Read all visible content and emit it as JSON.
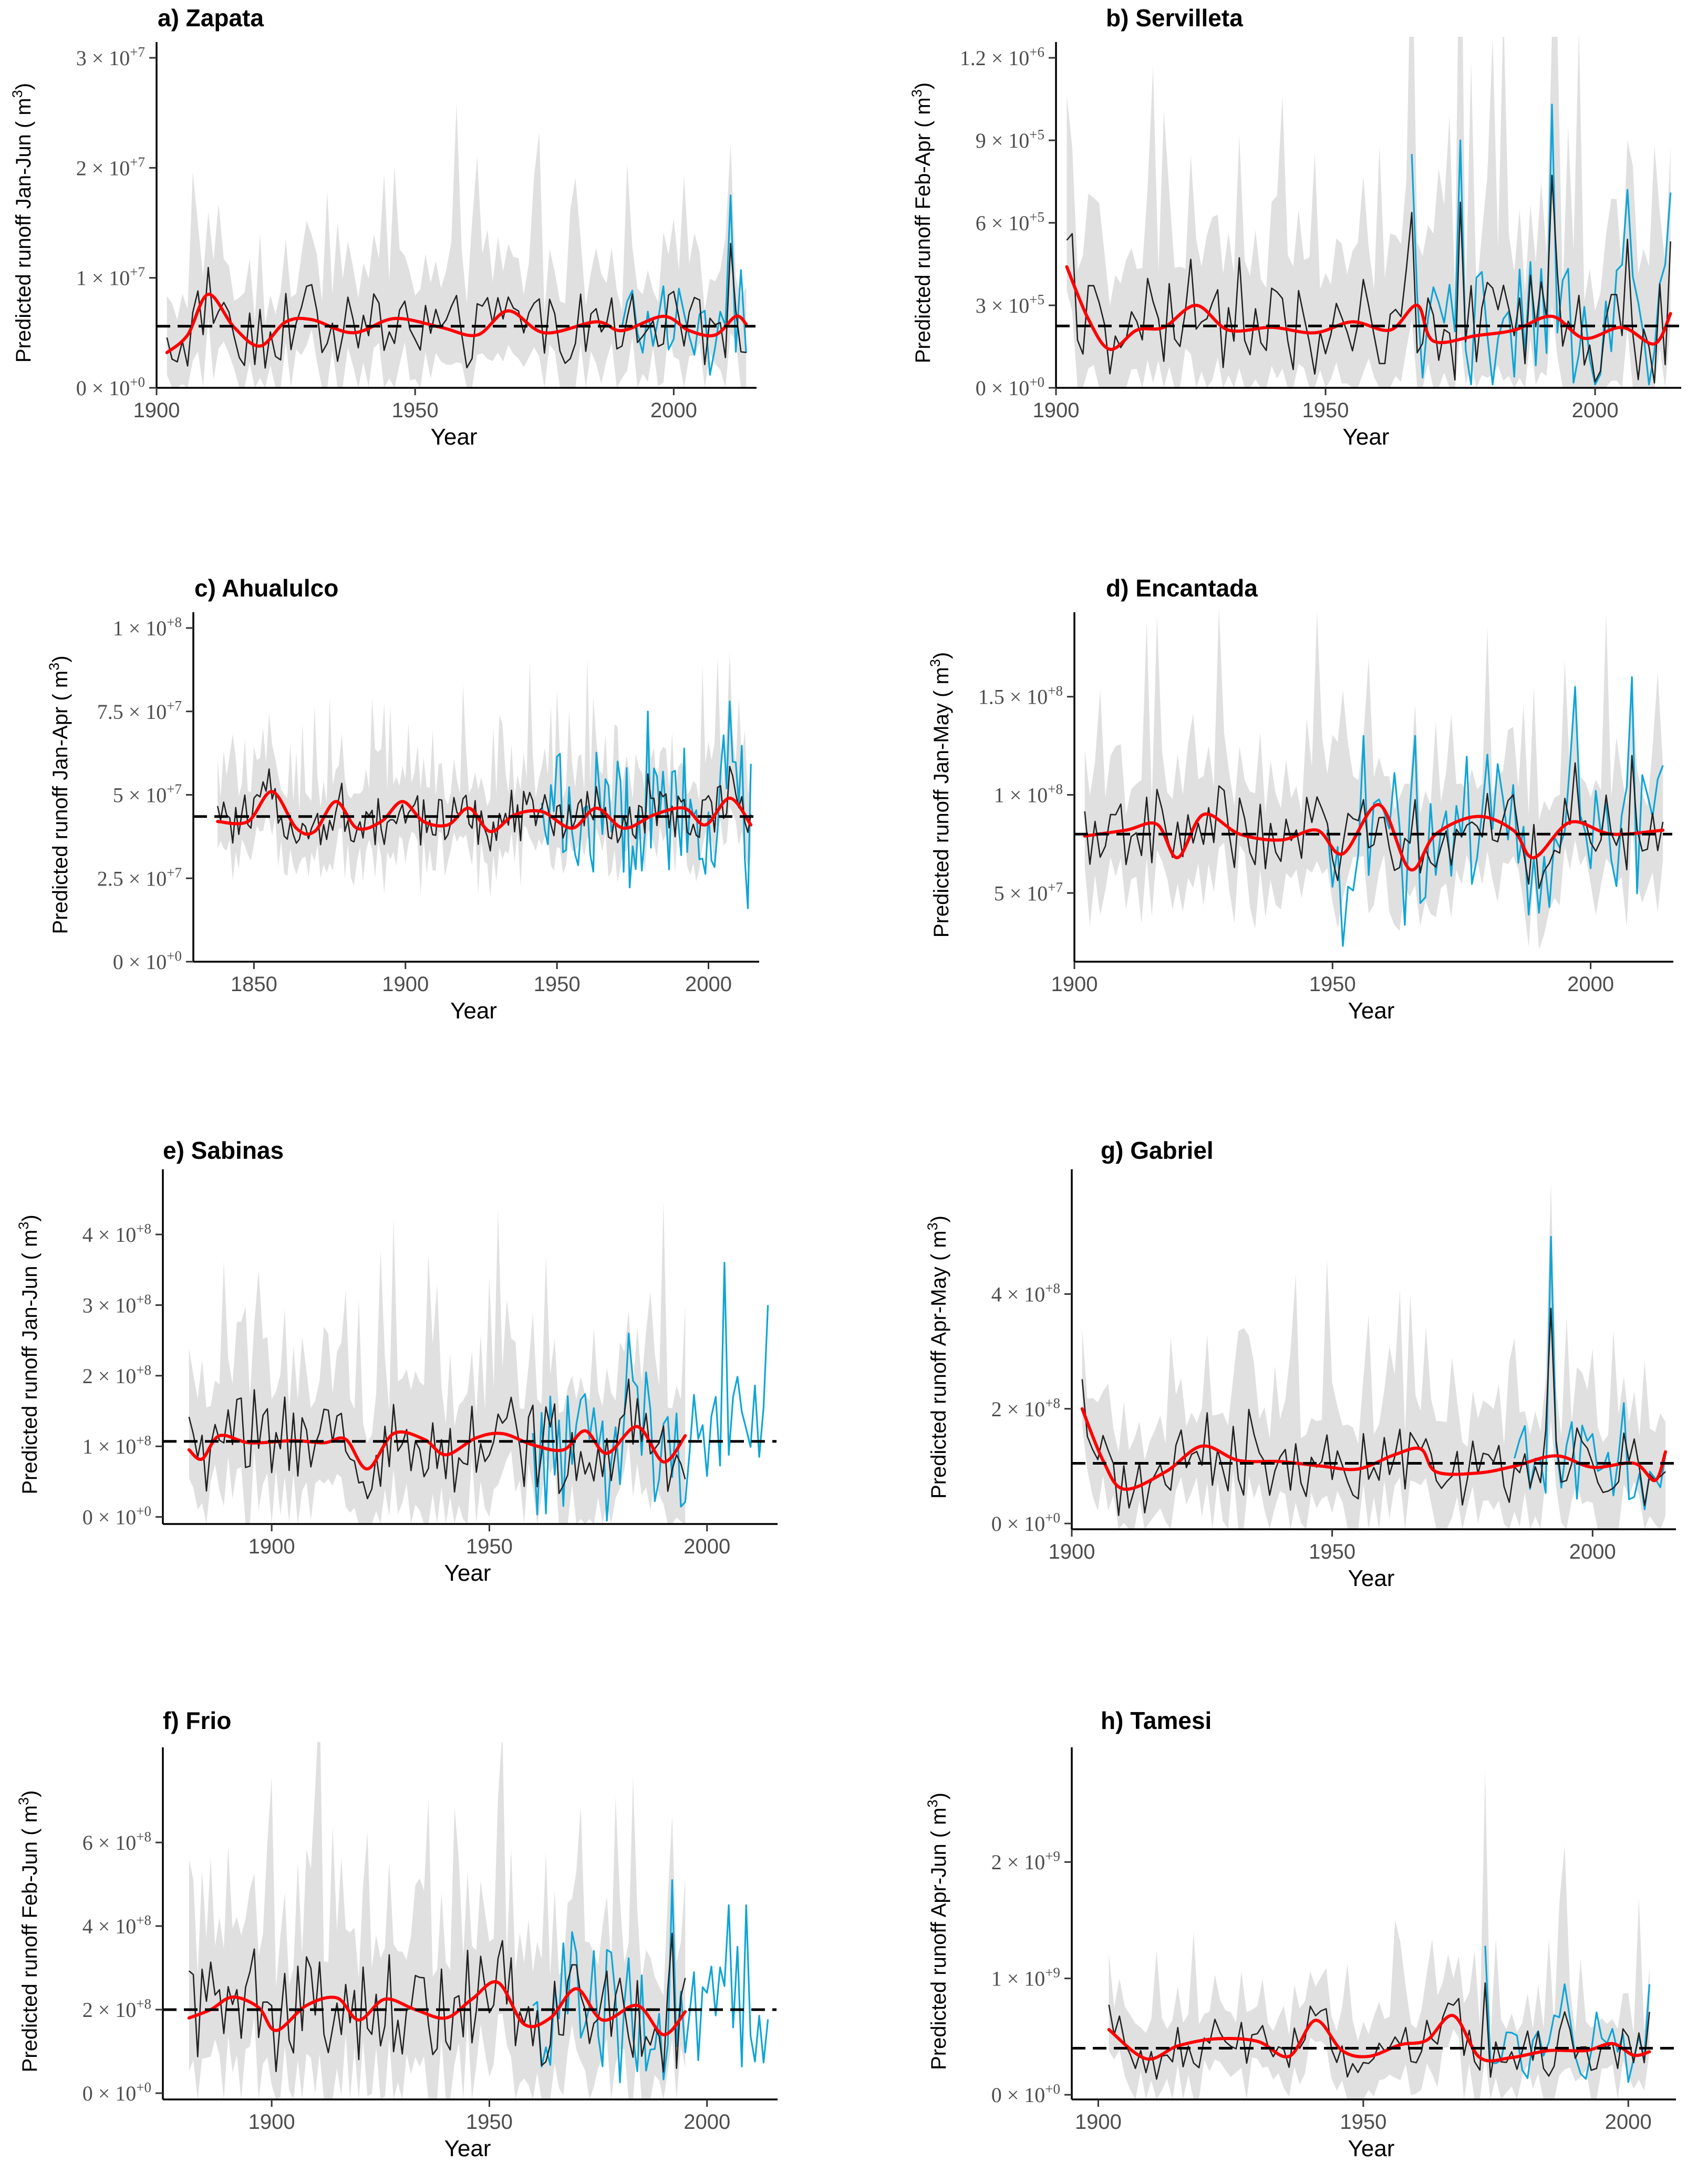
{
  "colors": {
    "band": "#d6d6d6",
    "reconstruction": "#222222",
    "observed": "#0da5d6",
    "smooth": "#ff0000",
    "mean": "#000000"
  },
  "chart_data": [
    {
      "id": "a",
      "title": "a) Zapata",
      "type": "line",
      "xlabel": "Year",
      "ylabel_text": "Predicted runoff Jan-Jun",
      "ylabel_unit": "m",
      "ylabel_unit_exp": "3",
      "xlim": [
        1900,
        2015
      ],
      "xticks": [
        1900,
        1950,
        2000
      ],
      "ylim": [
        0,
        30000000
      ],
      "yticks": [
        {
          "m": "0",
          "e": "+0",
          "v": 0
        },
        {
          "m": "1",
          "e": "+7",
          "v": 10000000
        },
        {
          "m": "2",
          "e": "+7",
          "v": 20000000
        },
        {
          "m": "3",
          "e": "+7",
          "v": 30000000
        }
      ],
      "reconstruction": {
        "start": 1902,
        "end": 2014,
        "mean": 5600000,
        "amp": 2000000
      },
      "observed": {
        "start": 1990,
        "end": 2014,
        "amp": 3500000
      },
      "peaks": [
        [
          1910,
          11500000
        ],
        [
          1920,
          9500000
        ],
        [
          1948,
          10500000
        ],
        [
          1968,
          11000000
        ],
        [
          2011,
          17500000
        ],
        [
          2004,
          3000000
        ]
      ],
      "smooth": [
        [
          1902,
          3200000
        ],
        [
          1906,
          4800000
        ],
        [
          1910,
          8500000
        ],
        [
          1915,
          5500000
        ],
        [
          1920,
          3800000
        ],
        [
          1925,
          6000000
        ],
        [
          1930,
          6200000
        ],
        [
          1938,
          5000000
        ],
        [
          1946,
          6300000
        ],
        [
          1955,
          5500000
        ],
        [
          1962,
          4800000
        ],
        [
          1968,
          7000000
        ],
        [
          1975,
          5000000
        ],
        [
          1985,
          6000000
        ],
        [
          1990,
          5200000
        ],
        [
          1998,
          6500000
        ],
        [
          2003,
          5200000
        ],
        [
          2008,
          4800000
        ],
        [
          2012,
          6500000
        ],
        [
          2014,
          5800000
        ]
      ],
      "mean_line": 5600000
    },
    {
      "id": "b",
      "title": "b) Servilleta",
      "type": "line",
      "xlabel": "Year",
      "ylabel_text": "Predicted runoff Feb-Apr",
      "ylabel_unit": "m",
      "ylabel_unit_exp": "3",
      "xlim": [
        1900,
        2015
      ],
      "xticks": [
        1900,
        1950,
        2000
      ],
      "ylim": [
        0,
        1200000
      ],
      "yticks": [
        {
          "m": "0",
          "e": "+0",
          "v": 0
        },
        {
          "m": "3",
          "e": "+5",
          "v": 300000
        },
        {
          "m": "6",
          "e": "+5",
          "v": 600000
        },
        {
          "m": "9",
          "e": "+5",
          "v": 900000
        },
        {
          "m": "1.2",
          "e": "+6",
          "v": 1200000
        }
      ],
      "reconstruction": {
        "start": 1902,
        "end": 2014,
        "mean": 225000,
        "amp": 120000
      },
      "observed": {
        "start": 1966,
        "end": 2014,
        "amp": 180000
      },
      "peaks": [
        [
          1934,
          630000
        ],
        [
          1966,
          850000
        ],
        [
          1975,
          900000
        ],
        [
          1992,
          1030000
        ],
        [
          2006,
          720000
        ],
        [
          2014,
          710000
        ]
      ],
      "smooth": [
        [
          1902,
          440000
        ],
        [
          1906,
          250000
        ],
        [
          1910,
          140000
        ],
        [
          1915,
          210000
        ],
        [
          1920,
          220000
        ],
        [
          1926,
          300000
        ],
        [
          1932,
          210000
        ],
        [
          1940,
          220000
        ],
        [
          1948,
          200000
        ],
        [
          1955,
          240000
        ],
        [
          1962,
          210000
        ],
        [
          1967,
          300000
        ],
        [
          1970,
          170000
        ],
        [
          1978,
          190000
        ],
        [
          1985,
          210000
        ],
        [
          1992,
          260000
        ],
        [
          1998,
          180000
        ],
        [
          2005,
          220000
        ],
        [
          2011,
          160000
        ],
        [
          2014,
          270000
        ]
      ],
      "mean_line": 225000
    },
    {
      "id": "c",
      "title": "c) Ahualulco",
      "type": "line",
      "xlabel": "Year",
      "ylabel_text": "Predicted runoff Jan-Apr",
      "ylabel_unit": "m",
      "ylabel_unit_exp": "3",
      "xlim": [
        1830,
        2015
      ],
      "xticks": [
        1850,
        1900,
        1950,
        2000
      ],
      "ylim": [
        0,
        100000000
      ],
      "yticks": [
        {
          "m": "0",
          "e": "+0",
          "v": 0
        },
        {
          "m": "2.5",
          "e": "+7",
          "v": 25000000
        },
        {
          "m": "5",
          "e": "+7",
          "v": 50000000
        },
        {
          "m": "7.5",
          "e": "+7",
          "v": 75000000
        },
        {
          "m": "1",
          "e": "+8",
          "v": 100000000
        }
      ],
      "reconstruction": {
        "start": 1838,
        "end": 2014,
        "mean": 43500000,
        "amp": 5000000
      },
      "observed": {
        "start": 1945,
        "end": 2014,
        "amp": 15000000
      },
      "peaks": [
        [
          1856,
          65000000
        ],
        [
          2007,
          78000000
        ],
        [
          1980,
          75000000
        ],
        [
          2013,
          16000000
        ]
      ],
      "smooth": [
        [
          1838,
          42000000
        ],
        [
          1848,
          42000000
        ],
        [
          1856,
          51000000
        ],
        [
          1864,
          40000000
        ],
        [
          1870,
          39000000
        ],
        [
          1877,
          48000000
        ],
        [
          1884,
          40000000
        ],
        [
          1892,
          42000000
        ],
        [
          1899,
          48000000
        ],
        [
          1906,
          42000000
        ],
        [
          1914,
          41000000
        ],
        [
          1921,
          46000000
        ],
        [
          1928,
          39000000
        ],
        [
          1936,
          44000000
        ],
        [
          1945,
          45000000
        ],
        [
          1955,
          40000000
        ],
        [
          1963,
          46000000
        ],
        [
          1972,
          40000000
        ],
        [
          1982,
          44000000
        ],
        [
          1992,
          46000000
        ],
        [
          1999,
          41000000
        ],
        [
          2007,
          49000000
        ],
        [
          2014,
          41000000
        ]
      ],
      "mean_line": 43500000
    },
    {
      "id": "d",
      "title": "d) Encantada",
      "type": "line",
      "xlabel": "Year",
      "ylabel_text": "Predicted runoff Jan-May",
      "ylabel_unit": "m",
      "ylabel_unit_exp": "3",
      "xlim": [
        1900,
        2015
      ],
      "xticks": [
        1900,
        1950,
        2000
      ],
      "ylim": [
        15000000,
        185000000
      ],
      "yticks": [
        {
          "m": "5",
          "e": "+7",
          "v": 50000000
        },
        {
          "m": "1",
          "e": "+8",
          "v": 100000000
        },
        {
          "m": "1.5",
          "e": "+8",
          "v": 150000000
        }
      ],
      "reconstruction": {
        "start": 1902,
        "end": 2014,
        "mean": 80000000,
        "amp": 12000000
      },
      "observed": {
        "start": 1949,
        "end": 2014,
        "amp": 25000000
      },
      "peaks": [
        [
          1907,
          120000000
        ],
        [
          1920,
          38000000
        ],
        [
          1952,
          23000000
        ],
        [
          1956,
          130000000
        ],
        [
          1966,
          130000000
        ],
        [
          1997,
          155000000
        ],
        [
          2008,
          160000000
        ],
        [
          2014,
          115000000
        ]
      ],
      "smooth": [
        [
          1902,
          79000000
        ],
        [
          1910,
          82000000
        ],
        [
          1916,
          85000000
        ],
        [
          1920,
          68000000
        ],
        [
          1925,
          90000000
        ],
        [
          1932,
          80000000
        ],
        [
          1940,
          77000000
        ],
        [
          1947,
          82000000
        ],
        [
          1952,
          70000000
        ],
        [
          1959,
          95000000
        ],
        [
          1965,
          62000000
        ],
        [
          1970,
          80000000
        ],
        [
          1978,
          89000000
        ],
        [
          1985,
          82000000
        ],
        [
          1989,
          68000000
        ],
        [
          1996,
          86000000
        ],
        [
          2004,
          80000000
        ],
        [
          2014,
          82000000
        ]
      ],
      "mean_line": 80000000
    },
    {
      "id": "e",
      "title": "e) Sabinas",
      "type": "line",
      "xlabel": "Year",
      "ylabel_text": "Predicted runoff Jan-Jun",
      "ylabel_unit": "m",
      "ylabel_unit_exp": "3",
      "xlim": [
        1875,
        2015
      ],
      "xticks": [
        1900,
        1950,
        2000
      ],
      "ylim": [
        -10000000,
        470000000
      ],
      "yticks": [
        {
          "m": "0",
          "e": "+0",
          "v": 0
        },
        {
          "m": "1",
          "e": "+8",
          "v": 100000000
        },
        {
          "m": "2",
          "e": "+8",
          "v": 200000000
        },
        {
          "m": "3",
          "e": "+8",
          "v": 300000000
        },
        {
          "m": "4",
          "e": "+8",
          "v": 400000000
        }
      ],
      "reconstruction": {
        "start": 1881,
        "end": 1995,
        "mean": 107000000,
        "amp": 40000000
      },
      "observed": {
        "start": 1960,
        "end": 2014,
        "amp": 70000000
      },
      "peaks": [
        [
          1896,
          240000000
        ],
        [
          2004,
          360000000
        ],
        [
          2014,
          300000000
        ],
        [
          1982,
          260000000
        ]
      ],
      "smooth": [
        [
          1881,
          95000000
        ],
        [
          1884,
          82000000
        ],
        [
          1888,
          115000000
        ],
        [
          1895,
          105000000
        ],
        [
          1905,
          108000000
        ],
        [
          1912,
          105000000
        ],
        [
          1917,
          110000000
        ],
        [
          1922,
          68000000
        ],
        [
          1928,
          118000000
        ],
        [
          1935,
          110000000
        ],
        [
          1940,
          88000000
        ],
        [
          1947,
          112000000
        ],
        [
          1953,
          118000000
        ],
        [
          1960,
          102000000
        ],
        [
          1967,
          95000000
        ],
        [
          1972,
          122000000
        ],
        [
          1977,
          90000000
        ],
        [
          1984,
          128000000
        ],
        [
          1990,
          78000000
        ],
        [
          1995,
          115000000
        ]
      ],
      "mean_line": 107000000
    },
    {
      "id": "g",
      "title": "g) Gabriel",
      "type": "line",
      "xlabel": "Year",
      "ylabel_text": "Predicted runoff Apr-May",
      "ylabel_unit": "m",
      "ylabel_unit_exp": "3",
      "xlim": [
        1900,
        2015
      ],
      "xticks": [
        1900,
        1950,
        2000
      ],
      "ylim": [
        -10000000,
        590000000
      ],
      "yticks": [
        {
          "m": "0",
          "e": "+0",
          "v": 0
        },
        {
          "m": "2",
          "e": "+8",
          "v": 200000000
        },
        {
          "m": "4",
          "e": "+8",
          "v": 400000000
        }
      ],
      "reconstruction": {
        "start": 1902,
        "end": 2014,
        "mean": 105000000,
        "amp": 40000000
      },
      "observed": {
        "start": 1985,
        "end": 2014,
        "amp": 50000000
      },
      "peaks": [
        [
          1934,
          265000000
        ],
        [
          1992,
          500000000
        ],
        [
          2006,
          210000000
        ],
        [
          1902,
          200000000
        ]
      ],
      "smooth": [
        [
          1902,
          200000000
        ],
        [
          1906,
          110000000
        ],
        [
          1910,
          60000000
        ],
        [
          1918,
          90000000
        ],
        [
          1925,
          135000000
        ],
        [
          1932,
          110000000
        ],
        [
          1940,
          108000000
        ],
        [
          1948,
          100000000
        ],
        [
          1955,
          95000000
        ],
        [
          1962,
          120000000
        ],
        [
          1967,
          130000000
        ],
        [
          1970,
          90000000
        ],
        [
          1978,
          88000000
        ],
        [
          1985,
          100000000
        ],
        [
          1993,
          118000000
        ],
        [
          2000,
          98000000
        ],
        [
          2008,
          105000000
        ],
        [
          2012,
          75000000
        ],
        [
          2014,
          125000000
        ]
      ],
      "mean_line": 105000000
    },
    {
      "id": "f",
      "title": "f) Frio",
      "type": "line",
      "xlabel": "Year",
      "ylabel_text": "Predicted runoff Feb-Jun",
      "ylabel_unit": "m",
      "ylabel_unit_exp": "3",
      "xlim": [
        1875,
        2015
      ],
      "xticks": [
        1900,
        1950,
        2000
      ],
      "ylim": [
        -15000000,
        790000000
      ],
      "yticks": [
        {
          "m": "0",
          "e": "+0",
          "v": 0
        },
        {
          "m": "2",
          "e": "+8",
          "v": 200000000
        },
        {
          "m": "4",
          "e": "+8",
          "v": 400000000
        },
        {
          "m": "6",
          "e": "+8",
          "v": 600000000
        }
      ],
      "reconstruction": {
        "start": 1881,
        "end": 1995,
        "mean": 200000000,
        "amp": 80000000
      },
      "observed": {
        "start": 1960,
        "end": 2014,
        "amp": 130000000
      },
      "peaks": [
        [
          1896,
          460000000
        ],
        [
          1952,
          430000000
        ],
        [
          1992,
          510000000
        ],
        [
          2005,
          450000000
        ],
        [
          2009,
          450000000
        ]
      ],
      "smooth": [
        [
          1881,
          180000000
        ],
        [
          1886,
          200000000
        ],
        [
          1891,
          230000000
        ],
        [
          1897,
          205000000
        ],
        [
          1901,
          150000000
        ],
        [
          1908,
          210000000
        ],
        [
          1915,
          228000000
        ],
        [
          1920,
          175000000
        ],
        [
          1926,
          225000000
        ],
        [
          1933,
          200000000
        ],
        [
          1940,
          180000000
        ],
        [
          1946,
          225000000
        ],
        [
          1952,
          265000000
        ],
        [
          1958,
          165000000
        ],
        [
          1964,
          180000000
        ],
        [
          1970,
          250000000
        ],
        [
          1976,
          175000000
        ],
        [
          1984,
          210000000
        ],
        [
          1990,
          140000000
        ],
        [
          1995,
          195000000
        ]
      ],
      "mean_line": 200000000
    },
    {
      "id": "h",
      "title": "h) Tamesi",
      "type": "line",
      "xlabel": "Year",
      "ylabel_text": "Predicted runoff Apr-Jun",
      "ylabel_unit": "m",
      "ylabel_unit_exp": "3",
      "xlim": [
        1895,
        2008
      ],
      "xticks": [
        1900,
        1950,
        2000
      ],
      "ylim": [
        -40000000,
        2850000000
      ],
      "yticks": [
        {
          "m": "0",
          "e": "+0",
          "v": 0
        },
        {
          "m": "1",
          "e": "+9",
          "v": 1000000000
        },
        {
          "m": "2",
          "e": "+9",
          "v": 2000000000
        }
      ],
      "reconstruction": {
        "start": 1902,
        "end": 2004,
        "mean": 400000000,
        "amp": 140000000
      },
      "observed": {
        "start": 1973,
        "end": 2004,
        "amp": 220000000
      },
      "peaks": [
        [
          1940,
          950000000
        ],
        [
          1966,
          1050000000
        ],
        [
          1973,
          1280000000
        ],
        [
          1988,
          950000000
        ],
        [
          2004,
          950000000
        ]
      ],
      "smooth": [
        [
          1902,
          560000000
        ],
        [
          1909,
          310000000
        ],
        [
          1915,
          420000000
        ],
        [
          1922,
          480000000
        ],
        [
          1930,
          460000000
        ],
        [
          1936,
          330000000
        ],
        [
          1941,
          640000000
        ],
        [
          1946,
          380000000
        ],
        [
          1951,
          330000000
        ],
        [
          1957,
          430000000
        ],
        [
          1962,
          470000000
        ],
        [
          1967,
          680000000
        ],
        [
          1972,
          320000000
        ],
        [
          1978,
          320000000
        ],
        [
          1985,
          380000000
        ],
        [
          1992,
          380000000
        ],
        [
          1997,
          440000000
        ],
        [
          2001,
          340000000
        ],
        [
          2004,
          370000000
        ]
      ],
      "mean_line": 400000000
    }
  ]
}
